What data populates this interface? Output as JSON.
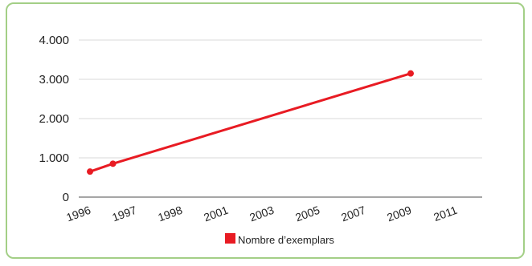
{
  "chart_data": {
    "type": "line",
    "categories": [
      "1996",
      "1997",
      "1998",
      "2001",
      "2003",
      "2005",
      "2007",
      "2009",
      "2011"
    ],
    "series": [
      {
        "name": "Nombre d’exemplars",
        "color": "#e81b23",
        "points": [
          {
            "x": "1996",
            "y": 650
          },
          {
            "x": "1996.5",
            "y": 850
          },
          {
            "x": "2009",
            "y": 3150
          }
        ]
      }
    ],
    "y_ticks": [
      "0",
      "1.000",
      "2.000",
      "3.000",
      "4.000"
    ],
    "ylim": [
      0,
      4000
    ],
    "grid": true,
    "legend_position": "bottom"
  }
}
